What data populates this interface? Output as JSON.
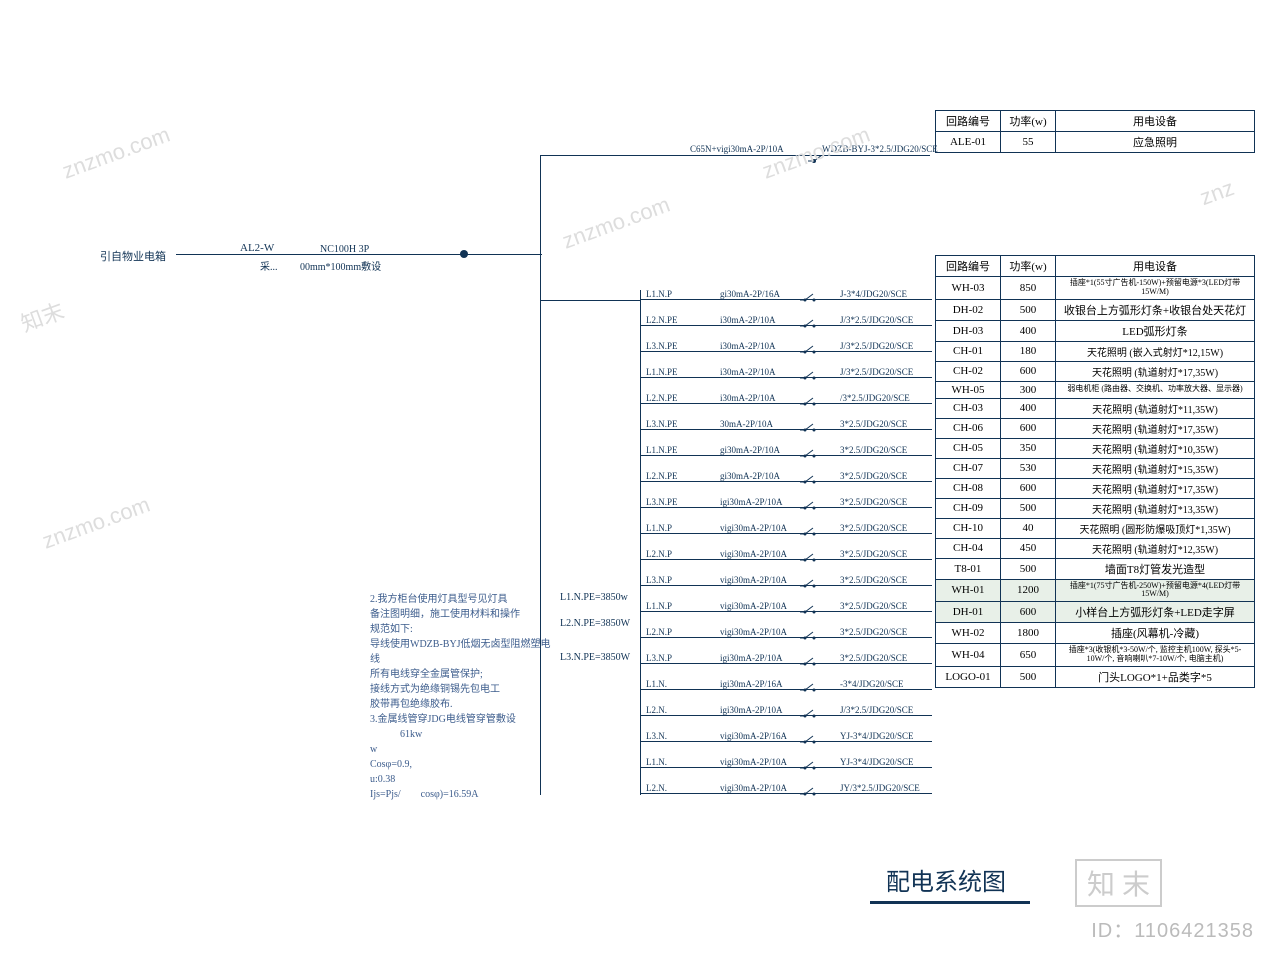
{
  "colors": {
    "ink": "#113355",
    "note": "#3c5c8c",
    "bg": "#ffffff"
  },
  "source": {
    "label": "引自物业电箱",
    "box_code": "AL2-W",
    "main_breaker": "NC100H 3P",
    "box_spec": "00mm*100mm敷设",
    "box_note": "采..."
  },
  "ale_breaker": "C65N+vigi30mA-2P/10A",
  "ale_cable": "WDZB-BYJ-3*2.5/JDG20/SCE",
  "table1": {
    "headers": [
      "回路编号",
      "功率(w)",
      "用电设备"
    ],
    "rows": [
      {
        "id": "ALE-01",
        "pw": "55",
        "eq": "应急照明"
      }
    ]
  },
  "table2": {
    "headers": [
      "回路编号",
      "功率(w)",
      "用电设备"
    ],
    "rows": [
      {
        "id": "WH-03",
        "pw": "850",
        "eq": "插座*1(55寸广告机-150W)+预留电源*3(LED灯带15W/M)",
        "small": true
      },
      {
        "id": "DH-02",
        "pw": "500",
        "eq": "收银台上方弧形灯条+收银台处天花灯"
      },
      {
        "id": "DH-03",
        "pw": "400",
        "eq": "LED弧形灯条"
      },
      {
        "id": "CH-01",
        "pw": "180",
        "eq": "天花照明 (嵌入式射灯*12,15W)"
      },
      {
        "id": "CH-02",
        "pw": "600",
        "eq": "天花照明 (轨道射灯*17,35W)"
      },
      {
        "id": "WH-05",
        "pw": "300",
        "eq": "弱电机柜 (路由器、交换机、功率放大器、显示器)",
        "small": true
      },
      {
        "id": "CH-03",
        "pw": "400",
        "eq": "天花照明 (轨道射灯*11,35W)"
      },
      {
        "id": "CH-06",
        "pw": "600",
        "eq": "天花照明 (轨道射灯*17,35W)"
      },
      {
        "id": "CH-05",
        "pw": "350",
        "eq": "天花照明 (轨道射灯*10,35W)"
      },
      {
        "id": "CH-07",
        "pw": "530",
        "eq": "天花照明 (轨道射灯*15,35W)"
      },
      {
        "id": "CH-08",
        "pw": "600",
        "eq": "天花照明 (轨道射灯*17,35W)"
      },
      {
        "id": "CH-09",
        "pw": "500",
        "eq": "天花照明 (轨道射灯*13,35W)"
      },
      {
        "id": "CH-10",
        "pw": "40",
        "eq": "天花照明 (圆形防爆吸顶灯*1,35W)"
      },
      {
        "id": "CH-04",
        "pw": "450",
        "eq": "天花照明 (轨道射灯*12,35W)"
      },
      {
        "id": "T8-01",
        "pw": "500",
        "eq": "墙面T8灯管发光造型"
      },
      {
        "id": "WH-01",
        "pw": "1200",
        "eq": "插座*1(75寸广告机-250W)+预留电源*4(LED灯带15W/M)",
        "small": true,
        "hl": true
      },
      {
        "id": "DH-01",
        "pw": "600",
        "eq": "小样台上方弧形灯条+LED走字屏",
        "hl": true
      },
      {
        "id": "WH-02",
        "pw": "1800",
        "eq": "插座(风幕机-冷藏)"
      },
      {
        "id": "WH-04",
        "pw": "650",
        "eq": "插座*3(收银机*3-50W/个, 监控主机100W, 探头*5-10W/个, 音响喇叭*7-10W/个, 电脑主机)",
        "small": true
      },
      {
        "id": "LOGO-01",
        "pw": "500",
        "eq": "门头LOGO*1+品类字*5"
      }
    ]
  },
  "circuits": [
    {
      "phase": "L1.N.P",
      "breaker": "gi30mA-2P/16A",
      "cable": "J-3*4/JDG20/SCE"
    },
    {
      "phase": "L2.N.PE",
      "breaker": "i30mA-2P/10A",
      "cable": "J/3*2.5/JDG20/SCE"
    },
    {
      "phase": "L3.N.PE",
      "breaker": "i30mA-2P/10A",
      "cable": "J/3*2.5/JDG20/SCE"
    },
    {
      "phase": "L1.N.PE",
      "breaker": "i30mA-2P/10A",
      "cable": "J/3*2.5/JDG20/SCE"
    },
    {
      "phase": "L2.N.PE",
      "breaker": "i30mA-2P/10A",
      "cable": "/3*2.5/JDG20/SCE"
    },
    {
      "phase": "L3.N.PE",
      "breaker": "30mA-2P/10A",
      "cable": "3*2.5/JDG20/SCE"
    },
    {
      "phase": "L1.N.PE",
      "breaker": "gi30mA-2P/10A",
      "cable": "3*2.5/JDG20/SCE"
    },
    {
      "phase": "L2.N.PE",
      "breaker": "gi30mA-2P/10A",
      "cable": "3*2.5/JDG20/SCE"
    },
    {
      "phase": "L3.N.PE",
      "breaker": "igi30mA-2P/10A",
      "cable": "3*2.5/JDG20/SCE"
    },
    {
      "phase": "L1.N.P",
      "breaker": "vigi30mA-2P/10A",
      "cable": "3*2.5/JDG20/SCE"
    },
    {
      "phase": "L2.N.P",
      "breaker": "vigi30mA-2P/10A",
      "cable": "3*2.5/JDG20/SCE"
    },
    {
      "phase": "L3.N.P",
      "breaker": "vigi30mA-2P/10A",
      "cable": "3*2.5/JDG20/SCE"
    },
    {
      "phase": "L1.N.P",
      "breaker": "vigi30mA-2P/10A",
      "cable": "3*2.5/JDG20/SCE"
    },
    {
      "phase": "L2.N.P",
      "breaker": "vigi30mA-2P/10A",
      "cable": "3*2.5/JDG20/SCE"
    },
    {
      "phase": "L3.N.P",
      "breaker": "igi30mA-2P/10A",
      "cable": "3*2.5/JDG20/SCE"
    },
    {
      "phase": "L1.N.",
      "breaker": "igi30mA-2P/16A",
      "cable": "-3*4/JDG20/SCE"
    },
    {
      "phase": "L2.N.",
      "breaker": "igi30mA-2P/10A",
      "cable": "J/3*2.5/JDG20/SCE"
    },
    {
      "phase": "L3.N.",
      "breaker": "vigi30mA-2P/16A",
      "cable": "YJ-3*4/JDG20/SCE"
    },
    {
      "phase": "L1.N.",
      "breaker": "vigi30mA-2P/10A",
      "cable": "YJ-3*4/JDG20/SCE"
    },
    {
      "phase": "L2.N.",
      "breaker": "vigi30mA-2P/10A",
      "cable": "JY/3*2.5/JDG20/SCE"
    }
  ],
  "phase_loads": {
    "l1": "L1.N.PE=3850w",
    "l2": "L2.N.PE=3850W",
    "l3": "L3.N.PE=3850W"
  },
  "notes": {
    "n2": "2.我方柜台使用灯具型号见灯具",
    "n2a": "备注图明细，施工使用材料和操作",
    "n2b": "规范如下:",
    "n2c": "导线使用WDZB-BYJ低烟无卤型阻燃塑电线",
    "n2d": "所有电线穿全金属管保护;",
    "n2e": "接线方式为绝缘铜锡先包电工",
    "n2f": "胶带再包绝缘胶布.",
    "n3": "3.金属线管穿JDG电线管穿管敷设",
    "calc1": "61kw",
    "calc2": "w",
    "calc3": "Cosφ=0.9,",
    "calc4": "u:0.38",
    "calc5": "Ijs=Pjs/",
    "calc5b": "cosφ)=16.59A"
  },
  "title": "配电系统图",
  "id": "ID：1106421358"
}
